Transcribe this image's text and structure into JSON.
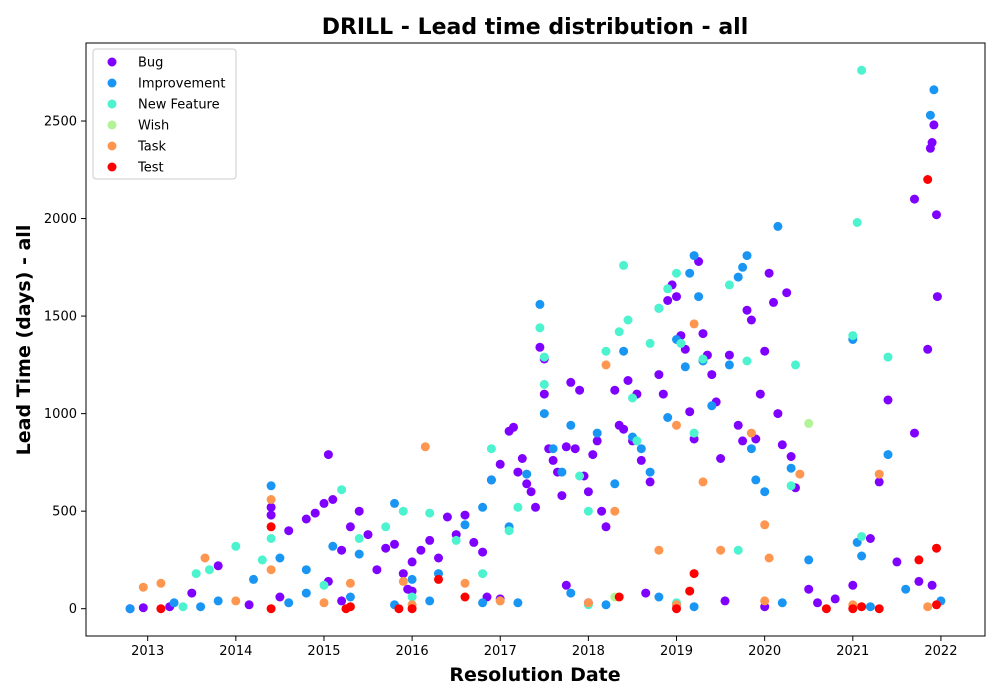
{
  "chart_data": {
    "type": "scatter",
    "title": "DRILL - Lead time distribution - all",
    "xlabel": "Resolution Date",
    "ylabel": "Lead Time (days) - all",
    "xlim": [
      2012.3,
      2022.5
    ],
    "ylim": [
      -140,
      2900
    ],
    "x_ticks": [
      2013,
      2014,
      2015,
      2016,
      2017,
      2018,
      2019,
      2020,
      2021,
      2022
    ],
    "x_tick_labels": [
      "2013",
      "2014",
      "2015",
      "2016",
      "2017",
      "2018",
      "2019",
      "2020",
      "2021",
      "2022"
    ],
    "y_ticks": [
      0,
      500,
      1000,
      1500,
      2000,
      2500
    ],
    "y_tick_labels": [
      "0",
      "500",
      "1000",
      "1500",
      "2000",
      "2500"
    ],
    "grid": false,
    "legend_position": "top-left",
    "series": [
      {
        "name": "Bug",
        "color": "#8000ff",
        "points": [
          [
            2012.8,
            0
          ],
          [
            2013.5,
            80
          ],
          [
            2013.8,
            220
          ],
          [
            2014.4,
            520
          ],
          [
            2014.4,
            480
          ],
          [
            2014.6,
            400
          ],
          [
            2014.8,
            460
          ],
          [
            2014.9,
            490
          ],
          [
            2015.0,
            540
          ],
          [
            2015.05,
            790
          ],
          [
            2015.1,
            560
          ],
          [
            2015.2,
            300
          ],
          [
            2015.3,
            420
          ],
          [
            2015.4,
            500
          ],
          [
            2015.5,
            380
          ],
          [
            2015.6,
            200
          ],
          [
            2015.7,
            310
          ],
          [
            2015.8,
            330
          ],
          [
            2015.9,
            180
          ],
          [
            2016.0,
            240
          ],
          [
            2016.1,
            300
          ],
          [
            2016.2,
            350
          ],
          [
            2016.3,
            260
          ],
          [
            2016.4,
            470
          ],
          [
            2016.5,
            380
          ],
          [
            2016.6,
            480
          ],
          [
            2016.7,
            340
          ],
          [
            2016.8,
            290
          ],
          [
            2016.9,
            660
          ],
          [
            2017.0,
            740
          ],
          [
            2017.1,
            910
          ],
          [
            2017.15,
            930
          ],
          [
            2017.2,
            700
          ],
          [
            2017.25,
            770
          ],
          [
            2017.3,
            640
          ],
          [
            2017.35,
            600
          ],
          [
            2017.4,
            520
          ],
          [
            2017.45,
            1340
          ],
          [
            2017.5,
            1280
          ],
          [
            2017.5,
            1100
          ],
          [
            2017.55,
            820
          ],
          [
            2017.6,
            760
          ],
          [
            2017.65,
            700
          ],
          [
            2017.7,
            580
          ],
          [
            2017.75,
            830
          ],
          [
            2017.8,
            1160
          ],
          [
            2017.85,
            820
          ],
          [
            2017.9,
            1120
          ],
          [
            2017.95,
            680
          ],
          [
            2018.0,
            600
          ],
          [
            2018.05,
            790
          ],
          [
            2018.1,
            860
          ],
          [
            2018.15,
            500
          ],
          [
            2018.2,
            420
          ],
          [
            2018.3,
            1120
          ],
          [
            2018.35,
            940
          ],
          [
            2018.4,
            920
          ],
          [
            2018.45,
            1170
          ],
          [
            2018.5,
            860
          ],
          [
            2018.55,
            1100
          ],
          [
            2018.6,
            760
          ],
          [
            2018.7,
            650
          ],
          [
            2018.8,
            1200
          ],
          [
            2018.85,
            1100
          ],
          [
            2018.9,
            1580
          ],
          [
            2018.95,
            1660
          ],
          [
            2019.0,
            1600
          ],
          [
            2019.05,
            1400
          ],
          [
            2019.1,
            1330
          ],
          [
            2019.15,
            1010
          ],
          [
            2019.2,
            870
          ],
          [
            2019.25,
            1780
          ],
          [
            2019.3,
            1410
          ],
          [
            2019.35,
            1300
          ],
          [
            2019.4,
            1200
          ],
          [
            2019.45,
            1060
          ],
          [
            2019.5,
            770
          ],
          [
            2019.6,
            1300
          ],
          [
            2019.7,
            940
          ],
          [
            2019.75,
            860
          ],
          [
            2019.8,
            1530
          ],
          [
            2019.85,
            1480
          ],
          [
            2019.9,
            870
          ],
          [
            2019.95,
            1100
          ],
          [
            2020.0,
            1320
          ],
          [
            2020.05,
            1720
          ],
          [
            2020.1,
            1570
          ],
          [
            2020.15,
            1000
          ],
          [
            2020.2,
            840
          ],
          [
            2020.25,
            1620
          ],
          [
            2020.3,
            780
          ],
          [
            2020.35,
            620
          ],
          [
            2020.5,
            100
          ],
          [
            2020.6,
            30
          ],
          [
            2020.8,
            50
          ],
          [
            2021.0,
            120
          ],
          [
            2021.2,
            360
          ],
          [
            2021.3,
            650
          ],
          [
            2021.4,
            1070
          ],
          [
            2021.5,
            240
          ],
          [
            2021.7,
            900
          ],
          [
            2021.75,
            140
          ],
          [
            2021.85,
            1330
          ],
          [
            2021.88,
            2360
          ],
          [
            2021.9,
            2390
          ],
          [
            2021.92,
            2480
          ],
          [
            2021.95,
            2020
          ],
          [
            2021.96,
            1600
          ],
          [
            2021.7,
            2100
          ],
          [
            2021.9,
            120
          ],
          [
            2014.5,
            60
          ],
          [
            2015.2,
            40
          ],
          [
            2016.0,
            90
          ],
          [
            2017.0,
            50
          ],
          [
            2018.0,
            30
          ],
          [
            2019.0,
            20
          ],
          [
            2020.0,
            10
          ],
          [
            2019.55,
            40
          ],
          [
            2018.65,
            80
          ],
          [
            2017.75,
            120
          ],
          [
            2016.85,
            60
          ],
          [
            2015.95,
            100
          ],
          [
            2015.05,
            140
          ],
          [
            2014.15,
            20
          ],
          [
            2013.25,
            10
          ],
          [
            2012.95,
            5
          ]
        ]
      },
      {
        "name": "Improvement",
        "color": "#1996f3",
        "points": [
          [
            2012.8,
            0
          ],
          [
            2013.3,
            30
          ],
          [
            2013.6,
            10
          ],
          [
            2014.2,
            150
          ],
          [
            2014.4,
            630
          ],
          [
            2014.5,
            260
          ],
          [
            2014.8,
            200
          ],
          [
            2015.1,
            320
          ],
          [
            2015.4,
            280
          ],
          [
            2015.8,
            540
          ],
          [
            2016.0,
            150
          ],
          [
            2016.3,
            180
          ],
          [
            2016.6,
            430
          ],
          [
            2016.8,
            520
          ],
          [
            2016.9,
            660
          ],
          [
            2017.1,
            420
          ],
          [
            2017.3,
            690
          ],
          [
            2017.45,
            1560
          ],
          [
            2017.5,
            1000
          ],
          [
            2017.6,
            820
          ],
          [
            2017.7,
            700
          ],
          [
            2017.8,
            940
          ],
          [
            2018.1,
            900
          ],
          [
            2018.3,
            640
          ],
          [
            2018.4,
            1320
          ],
          [
            2018.5,
            880
          ],
          [
            2018.6,
            820
          ],
          [
            2018.7,
            700
          ],
          [
            2018.8,
            1540
          ],
          [
            2018.9,
            980
          ],
          [
            2019.0,
            1380
          ],
          [
            2019.1,
            1240
          ],
          [
            2019.15,
            1720
          ],
          [
            2019.2,
            1810
          ],
          [
            2019.25,
            1600
          ],
          [
            2019.3,
            1270
          ],
          [
            2019.4,
            1040
          ],
          [
            2019.6,
            1250
          ],
          [
            2019.7,
            1700
          ],
          [
            2019.75,
            1750
          ],
          [
            2019.8,
            1810
          ],
          [
            2019.85,
            820
          ],
          [
            2019.9,
            660
          ],
          [
            2020.0,
            600
          ],
          [
            2020.15,
            1960
          ],
          [
            2020.3,
            720
          ],
          [
            2020.5,
            250
          ],
          [
            2021.0,
            1380
          ],
          [
            2021.05,
            340
          ],
          [
            2021.1,
            270
          ],
          [
            2021.4,
            790
          ],
          [
            2021.6,
            100
          ],
          [
            2021.88,
            2530
          ],
          [
            2021.92,
            2660
          ],
          [
            2022.0,
            40
          ],
          [
            2014.6,
            30
          ],
          [
            2015.3,
            60
          ],
          [
            2016.2,
            40
          ],
          [
            2017.2,
            30
          ],
          [
            2018.2,
            20
          ],
          [
            2019.2,
            10
          ],
          [
            2020.2,
            30
          ],
          [
            2021.2,
            10
          ],
          [
            2018.8,
            60
          ],
          [
            2017.8,
            80
          ],
          [
            2016.8,
            30
          ],
          [
            2015.8,
            20
          ],
          [
            2014.8,
            80
          ],
          [
            2013.8,
            40
          ]
        ]
      },
      {
        "name": "New Feature",
        "color": "#4df3ce",
        "points": [
          [
            2013.4,
            10
          ],
          [
            2013.55,
            180
          ],
          [
            2013.7,
            200
          ],
          [
            2014.0,
            320
          ],
          [
            2014.3,
            250
          ],
          [
            2014.4,
            360
          ],
          [
            2015.2,
            610
          ],
          [
            2015.4,
            360
          ],
          [
            2015.7,
            420
          ],
          [
            2015.9,
            500
          ],
          [
            2016.2,
            490
          ],
          [
            2016.5,
            350
          ],
          [
            2016.8,
            180
          ],
          [
            2016.9,
            820
          ],
          [
            2017.1,
            400
          ],
          [
            2017.2,
            520
          ],
          [
            2017.45,
            1440
          ],
          [
            2017.5,
            1150
          ],
          [
            2017.5,
            1290
          ],
          [
            2017.9,
            680
          ],
          [
            2018.0,
            500
          ],
          [
            2018.2,
            1320
          ],
          [
            2018.35,
            1420
          ],
          [
            2018.4,
            1760
          ],
          [
            2018.45,
            1480
          ],
          [
            2018.5,
            1080
          ],
          [
            2018.55,
            860
          ],
          [
            2018.7,
            1360
          ],
          [
            2018.8,
            1540
          ],
          [
            2018.9,
            1640
          ],
          [
            2019.0,
            1720
          ],
          [
            2019.05,
            1360
          ],
          [
            2019.2,
            900
          ],
          [
            2019.3,
            1280
          ],
          [
            2019.6,
            1660
          ],
          [
            2019.7,
            300
          ],
          [
            2019.8,
            1270
          ],
          [
            2020.3,
            630
          ],
          [
            2020.35,
            1250
          ],
          [
            2021.0,
            1400
          ],
          [
            2021.05,
            1980
          ],
          [
            2021.1,
            2760
          ],
          [
            2021.1,
            370
          ],
          [
            2021.4,
            1290
          ],
          [
            2015.0,
            120
          ],
          [
            2016.0,
            60
          ],
          [
            2017.0,
            40
          ],
          [
            2018.0,
            20
          ],
          [
            2019.0,
            30
          ]
        ]
      },
      {
        "name": "Wish",
        "color": "#b2f396",
        "points": [
          [
            2020.5,
            950
          ],
          [
            2018.3,
            60
          ]
        ]
      },
      {
        "name": "Task",
        "color": "#ff964f",
        "points": [
          [
            2012.95,
            110
          ],
          [
            2013.15,
            130
          ],
          [
            2013.65,
            260
          ],
          [
            2014.4,
            560
          ],
          [
            2014.4,
            200
          ],
          [
            2015.3,
            130
          ],
          [
            2015.9,
            140
          ],
          [
            2016.15,
            830
          ],
          [
            2016.6,
            130
          ],
          [
            2018.2,
            1250
          ],
          [
            2018.3,
            500
          ],
          [
            2018.8,
            300
          ],
          [
            2019.0,
            940
          ],
          [
            2019.2,
            1460
          ],
          [
            2019.3,
            650
          ],
          [
            2019.5,
            300
          ],
          [
            2019.85,
            900
          ],
          [
            2020.0,
            430
          ],
          [
            2020.05,
            260
          ],
          [
            2020.4,
            690
          ],
          [
            2021.3,
            690
          ],
          [
            2014.0,
            40
          ],
          [
            2015.0,
            30
          ],
          [
            2016.0,
            20
          ],
          [
            2017.0,
            40
          ],
          [
            2018.0,
            30
          ],
          [
            2019.0,
            20
          ],
          [
            2020.0,
            40
          ],
          [
            2021.0,
            20
          ],
          [
            2021.85,
            10
          ]
        ]
      },
      {
        "name": "Test",
        "color": "#ff0000",
        "points": [
          [
            2013.15,
            0
          ],
          [
            2014.4,
            0
          ],
          [
            2014.4,
            420
          ],
          [
            2015.25,
            0
          ],
          [
            2015.3,
            10
          ],
          [
            2015.85,
            0
          ],
          [
            2016.0,
            0
          ],
          [
            2016.3,
            150
          ],
          [
            2016.6,
            60
          ],
          [
            2018.35,
            60
          ],
          [
            2019.0,
            0
          ],
          [
            2019.15,
            90
          ],
          [
            2019.2,
            180
          ],
          [
            2020.7,
            0
          ],
          [
            2021.0,
            0
          ],
          [
            2021.1,
            10
          ],
          [
            2021.3,
            0
          ],
          [
            2021.75,
            250
          ],
          [
            2021.85,
            2200
          ],
          [
            2021.95,
            310
          ],
          [
            2021.95,
            20
          ]
        ]
      }
    ]
  }
}
